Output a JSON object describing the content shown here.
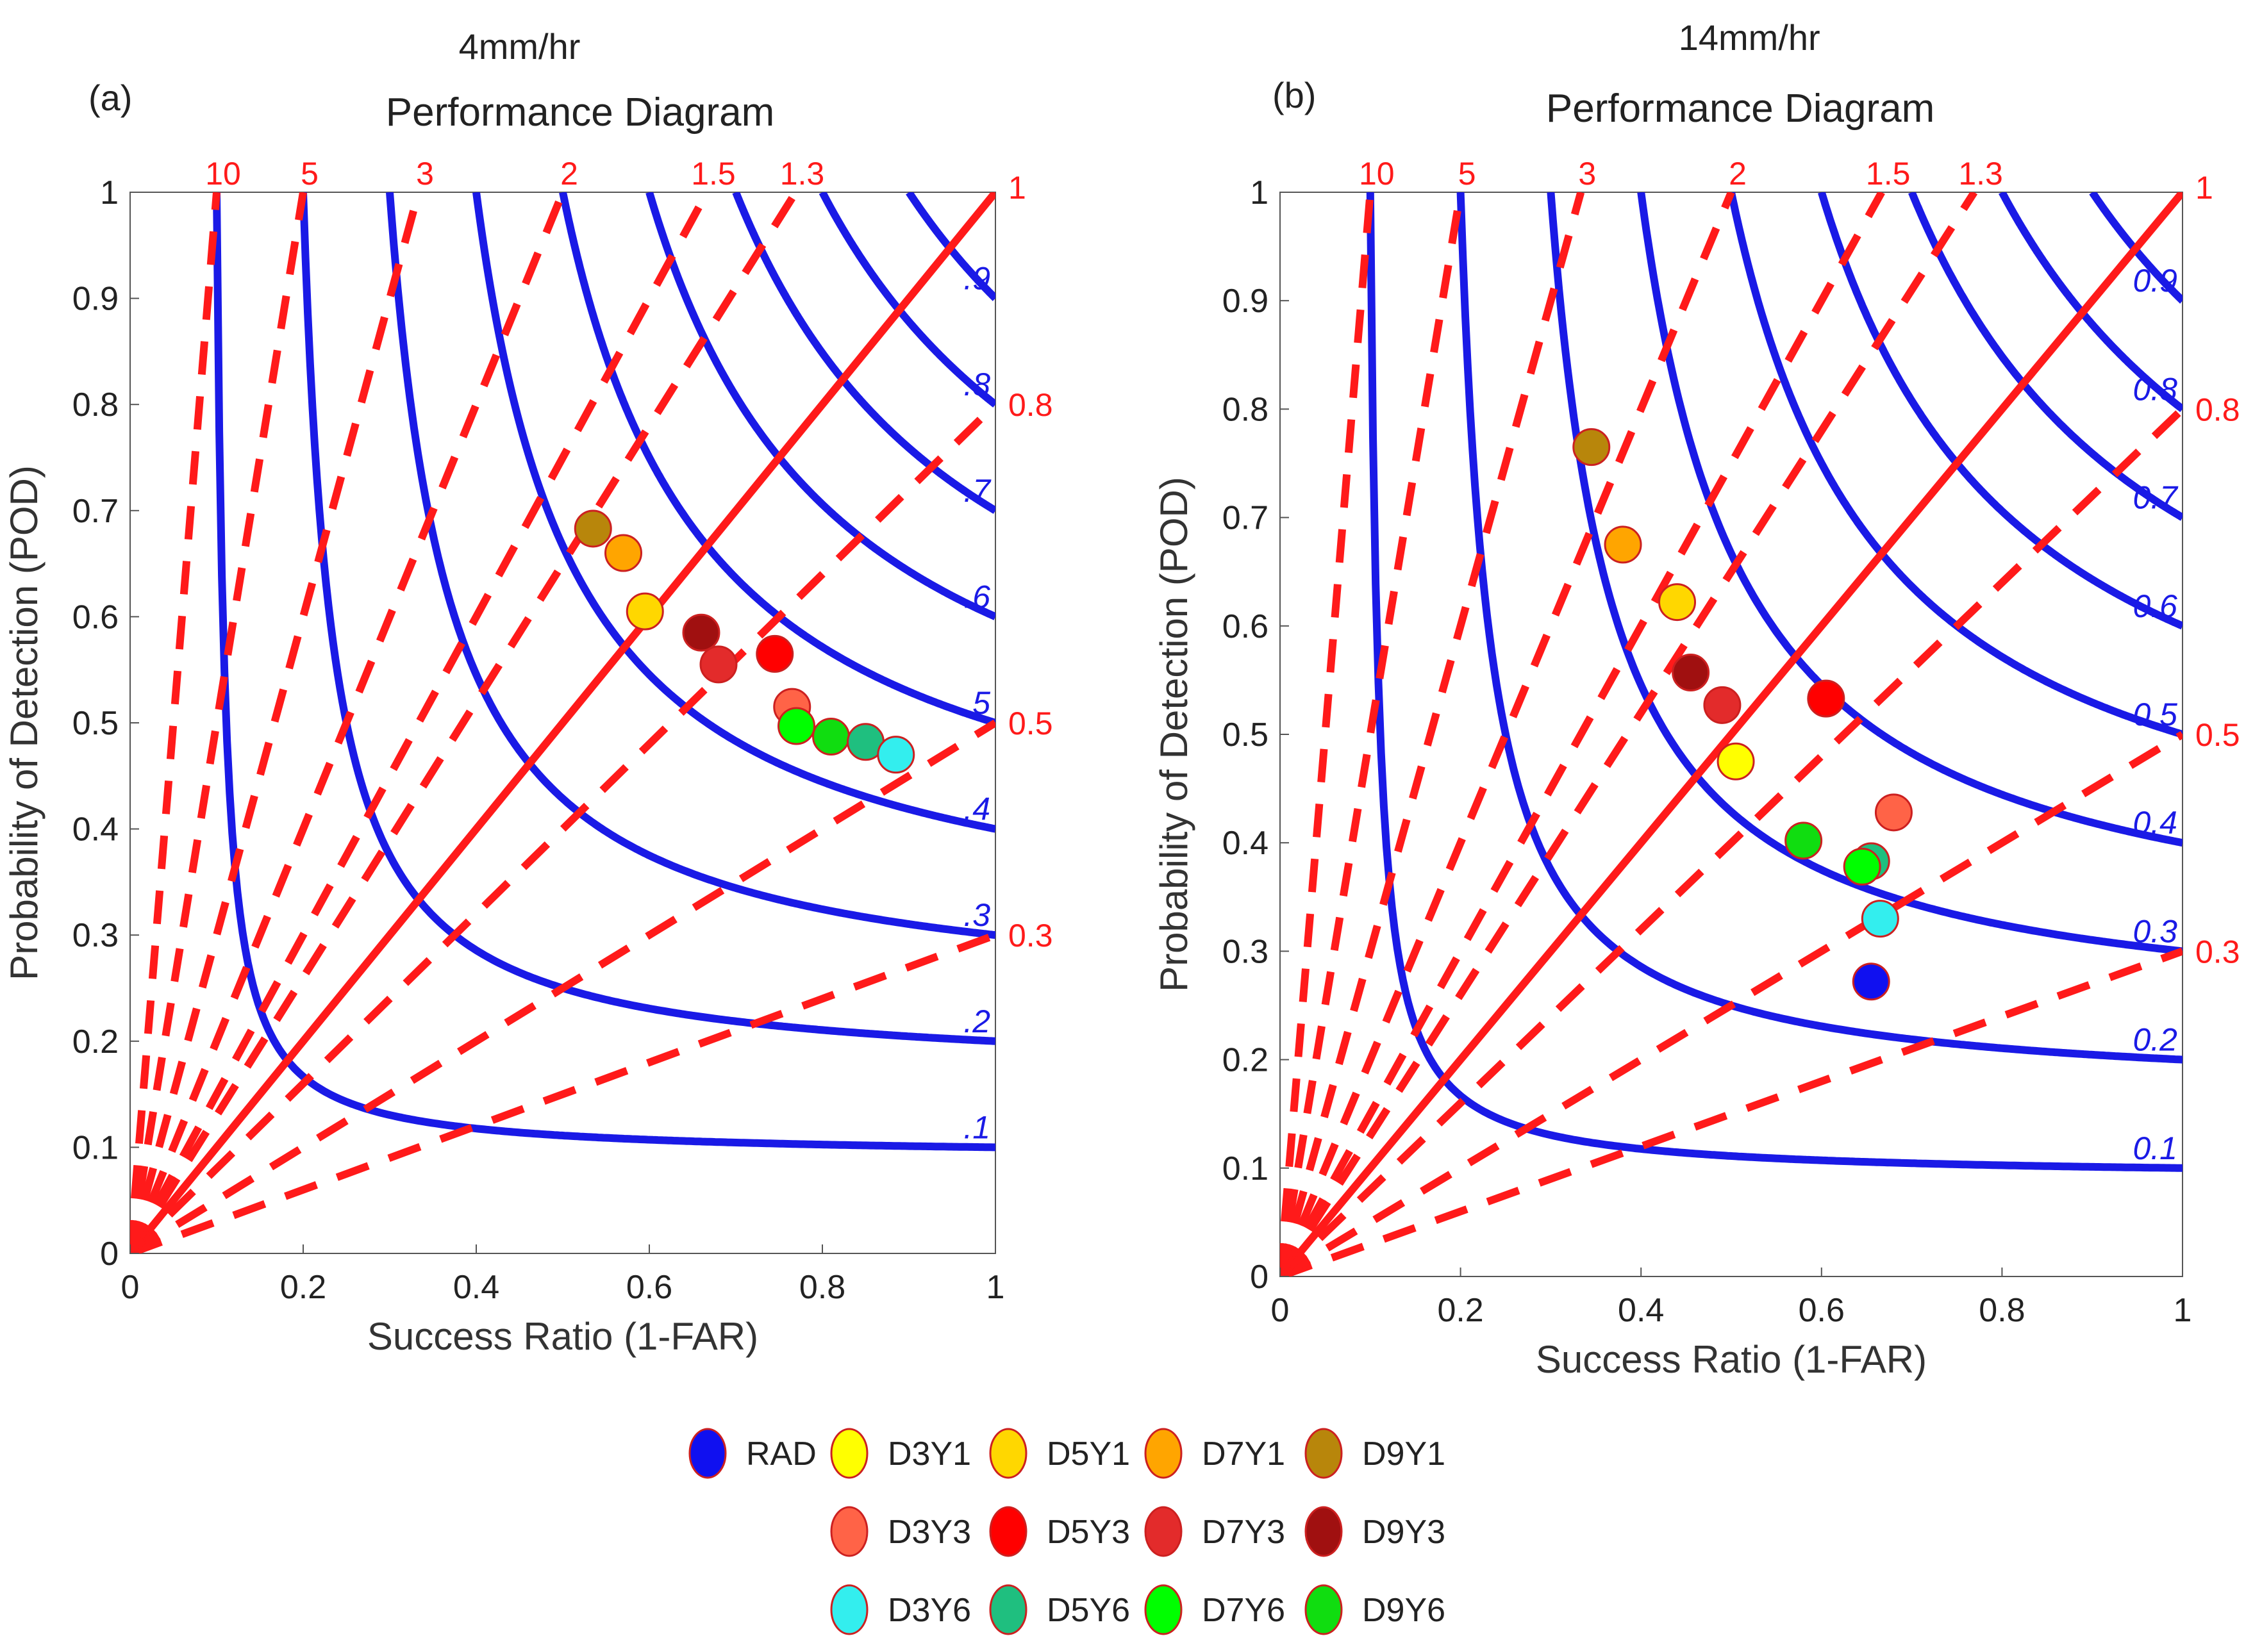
{
  "figure": {
    "legend": [
      {
        "name": "RAD",
        "color": "#1010f0"
      },
      {
        "name": "D3Y1",
        "color": "#ffff00"
      },
      {
        "name": "D5Y1",
        "color": "#ffd700"
      },
      {
        "name": "D7Y1",
        "color": "#ffa500"
      },
      {
        "name": "D9Y1",
        "color": "#b8860b"
      },
      {
        "name": "D3Y3",
        "color": "#ff6347"
      },
      {
        "name": "D5Y3",
        "color": "#ff0000"
      },
      {
        "name": "D7Y3",
        "color": "#e32b2b"
      },
      {
        "name": "D9Y3",
        "color": "#a01010"
      },
      {
        "name": "D3Y6",
        "color": "#33eeee"
      },
      {
        "name": "D5Y6",
        "color": "#1fbf7f"
      },
      {
        "name": "D7Y6",
        "color": "#00ff00"
      },
      {
        "name": "D9Y6",
        "color": "#10dd10"
      }
    ]
  },
  "chart_data": [
    {
      "type": "scatter",
      "panel_label": "(a)",
      "suptitle": "4mm/hr",
      "title": "Performance Diagram",
      "xlabel": "Success Ratio (1-FAR)",
      "ylabel": "Probability of Detection (POD)",
      "xlim": [
        0,
        1
      ],
      "ylim": [
        0,
        1
      ],
      "xticks": [
        "0",
        "0.2",
        "0.4",
        "0.6",
        "0.8",
        "1"
      ],
      "yticks": [
        "0",
        "0.1",
        "0.2",
        "0.3",
        "0.4",
        "0.5",
        "0.6",
        "0.7",
        "0.8",
        "0.9",
        "1"
      ],
      "csi_lines": [
        0.1,
        0.2,
        0.3,
        0.4,
        0.5,
        0.6,
        0.7,
        0.8,
        0.9
      ],
      "csi_labels": [
        ".1",
        ".2",
        ".3",
        ".4",
        ".5",
        ".6",
        ".7",
        ".8",
        ".9"
      ],
      "bias_lines": [
        0.3,
        0.5,
        0.8,
        1,
        1.3,
        1.5,
        2,
        3,
        5,
        10
      ],
      "bias_labels": [
        "0.3",
        "0.5",
        "0.8",
        "1",
        "1.3",
        "1.5",
        "2",
        "3",
        "5",
        "10"
      ],
      "series": [
        {
          "name": "D9Y1",
          "x": 0.535,
          "y": 0.683
        },
        {
          "name": "D7Y1",
          "x": 0.57,
          "y": 0.66
        },
        {
          "name": "D5Y1",
          "x": 0.595,
          "y": 0.605
        },
        {
          "name": "D9Y3",
          "x": 0.66,
          "y": 0.585
        },
        {
          "name": "D7Y3",
          "x": 0.68,
          "y": 0.555
        },
        {
          "name": "D5Y3",
          "x": 0.745,
          "y": 0.565
        },
        {
          "name": "D3Y3",
          "x": 0.765,
          "y": 0.515
        },
        {
          "name": "D7Y6",
          "x": 0.77,
          "y": 0.497
        },
        {
          "name": "D9Y6",
          "x": 0.81,
          "y": 0.487
        },
        {
          "name": "D5Y6",
          "x": 0.85,
          "y": 0.482
        },
        {
          "name": "D3Y6",
          "x": 0.885,
          "y": 0.47
        }
      ]
    },
    {
      "type": "scatter",
      "panel_label": "(b)",
      "suptitle": "14mm/hr",
      "title": "Performance Diagram",
      "xlabel": "Success Ratio (1-FAR)",
      "ylabel": "Probability of Detection (POD)",
      "xlim": [
        0,
        1
      ],
      "ylim": [
        0,
        1
      ],
      "xticks": [
        "0",
        "0.2",
        "0.4",
        "0.6",
        "0.8",
        "1"
      ],
      "yticks": [
        "0",
        "0.1",
        "0.2",
        "0.3",
        "0.4",
        "0.5",
        "0.6",
        "0.7",
        "0.8",
        "0.9",
        "1"
      ],
      "csi_lines": [
        0.1,
        0.2,
        0.3,
        0.4,
        0.5,
        0.6,
        0.7,
        0.8,
        0.9
      ],
      "csi_labels": [
        "0.1",
        "0.2",
        "0.3",
        "0.4",
        "0.5",
        "0.6",
        "0.7",
        "0.8",
        "0.9"
      ],
      "bias_lines": [
        0.3,
        0.5,
        0.8,
        1,
        1.3,
        1.5,
        2,
        3,
        5,
        10
      ],
      "bias_labels": [
        "0.3",
        "0.5",
        "0.8",
        "1",
        "1.3",
        "1.5",
        "2",
        "3",
        "5",
        "10"
      ],
      "series": [
        {
          "name": "D9Y1",
          "x": 0.345,
          "y": 0.765
        },
        {
          "name": "D7Y1",
          "x": 0.38,
          "y": 0.675
        },
        {
          "name": "D5Y1",
          "x": 0.44,
          "y": 0.622
        },
        {
          "name": "D9Y3",
          "x": 0.455,
          "y": 0.557
        },
        {
          "name": "D7Y3",
          "x": 0.49,
          "y": 0.527
        },
        {
          "name": "D3Y1",
          "x": 0.505,
          "y": 0.475
        },
        {
          "name": "D5Y3",
          "x": 0.605,
          "y": 0.533
        },
        {
          "name": "D9Y6",
          "x": 0.58,
          "y": 0.402
        },
        {
          "name": "D3Y3",
          "x": 0.68,
          "y": 0.428
        },
        {
          "name": "D5Y6",
          "x": 0.655,
          "y": 0.383
        },
        {
          "name": "D7Y6",
          "x": 0.645,
          "y": 0.378
        },
        {
          "name": "D3Y6",
          "x": 0.665,
          "y": 0.33
        },
        {
          "name": "RAD",
          "x": 0.655,
          "y": 0.272
        }
      ]
    }
  ]
}
